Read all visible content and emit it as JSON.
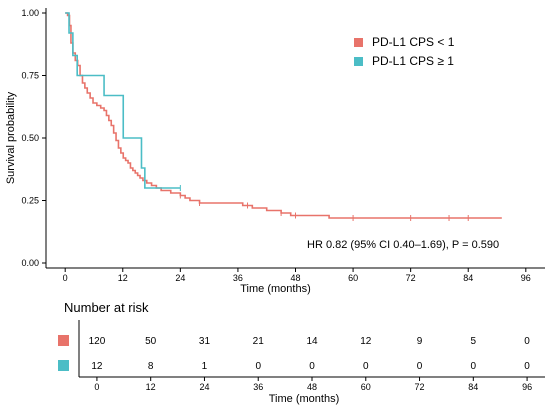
{
  "chart_data": [
    {
      "type": "line",
      "chart_kind": "kaplan-meier",
      "title": "",
      "xlabel": "Time (months)",
      "ylabel": "Survival probability",
      "xlim": [
        -4,
        100
      ],
      "ylim": [
        -0.02,
        1.02
      ],
      "xticks": [
        0,
        12,
        24,
        36,
        48,
        60,
        72,
        84,
        96
      ],
      "yticks": [
        "0.00",
        "0.25",
        "0.50",
        "0.75",
        "1.00"
      ],
      "grid": false,
      "legend_position": "top-right",
      "annotation": "HR 0.82 (95% CI 0.40–1.69), P = 0.590",
      "series": [
        {
          "name": "PD-L1 CPS < 1",
          "color": "#E8736A",
          "points": [
            [
              0,
              1.0
            ],
            [
              0.5,
              0.99
            ],
            [
              0.9,
              0.95
            ],
            [
              1.2,
              0.88
            ],
            [
              1.6,
              0.84
            ],
            [
              2.1,
              0.81
            ],
            [
              2.6,
              0.79
            ],
            [
              3.1,
              0.75
            ],
            [
              3.6,
              0.72
            ],
            [
              4.1,
              0.7
            ],
            [
              4.6,
              0.68
            ],
            [
              5.2,
              0.66
            ],
            [
              5.8,
              0.64
            ],
            [
              6.6,
              0.63
            ],
            [
              7.4,
              0.62
            ],
            [
              8.1,
              0.61
            ],
            [
              8.6,
              0.59
            ],
            [
              9.1,
              0.57
            ],
            [
              9.6,
              0.55
            ],
            [
              10.1,
              0.52
            ],
            [
              10.6,
              0.49
            ],
            [
              11.1,
              0.46
            ],
            [
              11.6,
              0.44
            ],
            [
              12.1,
              0.42
            ],
            [
              12.6,
              0.41
            ],
            [
              13.1,
              0.4
            ],
            [
              13.6,
              0.38
            ],
            [
              14.1,
              0.37
            ],
            [
              14.6,
              0.36
            ],
            [
              15.1,
              0.35
            ],
            [
              15.6,
              0.34
            ],
            [
              16.2,
              0.33
            ],
            [
              17.0,
              0.32
            ],
            [
              18.0,
              0.31
            ],
            [
              19.0,
              0.3
            ],
            [
              20.0,
              0.29
            ],
            [
              21.0,
              0.29
            ],
            [
              22.0,
              0.28
            ],
            [
              23.0,
              0.28
            ],
            [
              24.0,
              0.27
            ],
            [
              25.0,
              0.26
            ],
            [
              26.0,
              0.25
            ],
            [
              27.0,
              0.25
            ],
            [
              28.0,
              0.24
            ],
            [
              36.0,
              0.24
            ],
            [
              37.0,
              0.23
            ],
            [
              39.0,
              0.22
            ],
            [
              42.0,
              0.21
            ],
            [
              45.0,
              0.2
            ],
            [
              47.0,
              0.19
            ],
            [
              48.0,
              0.19
            ],
            [
              55.0,
              0.18
            ],
            [
              91.0,
              0.18
            ]
          ],
          "censor_marks": [
            24,
            28,
            38,
            45,
            48,
            60,
            72,
            80,
            84
          ]
        },
        {
          "name": "PD-L1 CPS ≥ 1",
          "color": "#4BBDC6",
          "points": [
            [
              0,
              1.0
            ],
            [
              0.8,
              0.92
            ],
            [
              1.5,
              0.92
            ],
            [
              1.6,
              0.83
            ],
            [
              2.4,
              0.83
            ],
            [
              2.5,
              0.75
            ],
            [
              8.0,
              0.75
            ],
            [
              8.1,
              0.67
            ],
            [
              12.0,
              0.67
            ],
            [
              12.1,
              0.5
            ],
            [
              15.8,
              0.5
            ],
            [
              15.9,
              0.38
            ],
            [
              16.5,
              0.38
            ],
            [
              16.6,
              0.3
            ],
            [
              24.0,
              0.3
            ]
          ],
          "censor_marks": [
            24
          ]
        }
      ]
    },
    {
      "type": "table",
      "title": "Number at risk",
      "xlabel": "Time (months)",
      "times": [
        0,
        12,
        24,
        36,
        48,
        60,
        72,
        84,
        96
      ],
      "rows": [
        {
          "group": "PD-L1 CPS < 1",
          "color": "#E8736A",
          "values": [
            120,
            50,
            31,
            21,
            14,
            12,
            9,
            5,
            0
          ]
        },
        {
          "group": "PD-L1 CPS ≥ 1",
          "color": "#4BBDC6",
          "values": [
            12,
            8,
            1,
            0,
            0,
            0,
            0,
            0,
            0
          ]
        }
      ]
    }
  ]
}
